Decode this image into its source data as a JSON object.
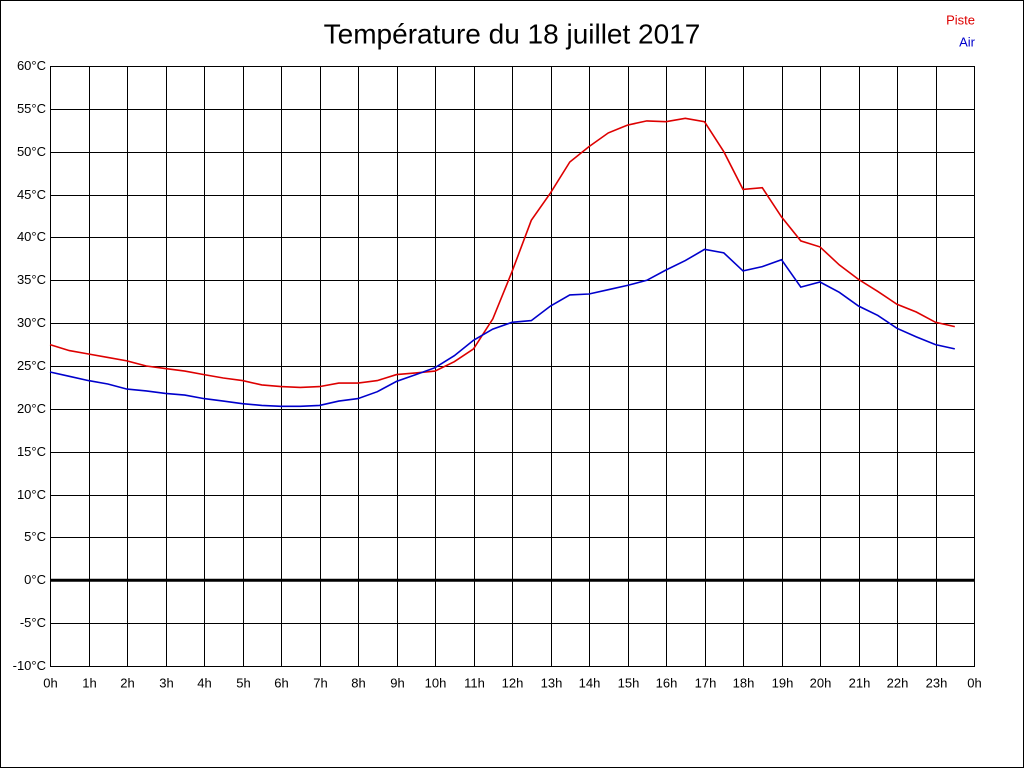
{
  "chart_data": {
    "type": "line",
    "title": "Température du 18 juillet 2017",
    "x": [
      0,
      0.5,
      1,
      1.5,
      2,
      2.5,
      3,
      3.5,
      4,
      4.5,
      5,
      5.5,
      6,
      6.5,
      7,
      7.5,
      8,
      8.5,
      9,
      9.5,
      10,
      10.5,
      11,
      11.5,
      12,
      12.5,
      13,
      13.5,
      14,
      14.5,
      15,
      15.5,
      16,
      16.5,
      17,
      17.5,
      18,
      18.5,
      19,
      19.5,
      20,
      20.5,
      21,
      21.5,
      22,
      22.5,
      23,
      23.5
    ],
    "series": [
      {
        "name": "Piste",
        "color": "#dd0000",
        "values": [
          27.5,
          26.8,
          26.4,
          26.0,
          25.6,
          25.0,
          24.7,
          24.4,
          24.0,
          23.6,
          23.3,
          22.8,
          22.6,
          22.5,
          22.6,
          23.0,
          23.0,
          23.3,
          24.0,
          24.2,
          24.4,
          25.5,
          27.0,
          30.5,
          36.0,
          42.0,
          45.2,
          48.8,
          50.6,
          52.2,
          53.1,
          53.6,
          53.5,
          53.9,
          53.5,
          50.0,
          45.6,
          45.8,
          42.4,
          39.6,
          38.9,
          36.8,
          35.1,
          33.7,
          32.2,
          31.3,
          30.1,
          29.6
        ]
      },
      {
        "name": "Air",
        "color": "#0000cc",
        "values": [
          24.3,
          23.8,
          23.3,
          22.9,
          22.3,
          22.1,
          21.8,
          21.6,
          21.2,
          20.9,
          20.6,
          20.4,
          20.3,
          20.3,
          20.4,
          20.9,
          21.2,
          22.0,
          23.2,
          24.0,
          24.8,
          26.2,
          28.0,
          29.3,
          30.1,
          30.3,
          32.0,
          33.3,
          33.4,
          33.9,
          34.4,
          35.0,
          36.2,
          37.3,
          38.6,
          38.2,
          36.1,
          36.6,
          37.4,
          34.2,
          34.8,
          33.6,
          32.0,
          30.9,
          29.4,
          28.4,
          27.5,
          27.0
        ]
      }
    ],
    "xlim": [
      0,
      24
    ],
    "xticks": [
      {
        "value": 0,
        "label": "0h"
      },
      {
        "value": 1,
        "label": "1h"
      },
      {
        "value": 2,
        "label": "2h"
      },
      {
        "value": 3,
        "label": "3h"
      },
      {
        "value": 4,
        "label": "4h"
      },
      {
        "value": 5,
        "label": "5h"
      },
      {
        "value": 6,
        "label": "6h"
      },
      {
        "value": 7,
        "label": "7h"
      },
      {
        "value": 8,
        "label": "8h"
      },
      {
        "value": 9,
        "label": "9h"
      },
      {
        "value": 10,
        "label": "10h"
      },
      {
        "value": 11,
        "label": "11h"
      },
      {
        "value": 12,
        "label": "12h"
      },
      {
        "value": 13,
        "label": "13h"
      },
      {
        "value": 14,
        "label": "14h"
      },
      {
        "value": 15,
        "label": "15h"
      },
      {
        "value": 16,
        "label": "16h"
      },
      {
        "value": 17,
        "label": "17h"
      },
      {
        "value": 18,
        "label": "18h"
      },
      {
        "value": 19,
        "label": "19h"
      },
      {
        "value": 20,
        "label": "20h"
      },
      {
        "value": 21,
        "label": "21h"
      },
      {
        "value": 22,
        "label": "22h"
      },
      {
        "value": 23,
        "label": "23h"
      },
      {
        "value": 24,
        "label": "0h"
      }
    ],
    "ylim": [
      -10,
      60
    ],
    "yticks": [
      {
        "value": -10,
        "label": "-10°C"
      },
      {
        "value": -5,
        "label": "-5°C"
      },
      {
        "value": 0,
        "label": "0°C"
      },
      {
        "value": 5,
        "label": "5°C"
      },
      {
        "value": 10,
        "label": "10°C"
      },
      {
        "value": 15,
        "label": "15°C"
      },
      {
        "value": 20,
        "label": "20°C"
      },
      {
        "value": 25,
        "label": "25°C"
      },
      {
        "value": 30,
        "label": "30°C"
      },
      {
        "value": 35,
        "label": "35°C"
      },
      {
        "value": 40,
        "label": "40°C"
      },
      {
        "value": 45,
        "label": "45°C"
      },
      {
        "value": 50,
        "label": "50°C"
      },
      {
        "value": 55,
        "label": "55°C"
      },
      {
        "value": 60,
        "label": "60°C"
      }
    ],
    "grid": true
  }
}
